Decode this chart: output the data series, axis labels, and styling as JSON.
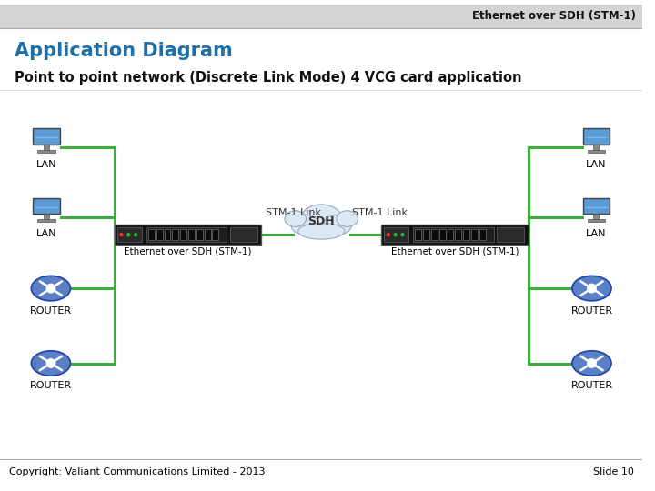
{
  "title_right": "Ethernet over SDH (STM-1)",
  "title_left": "Application Diagram",
  "subtitle": "Point to point network (Discrete Link Mode) 4 VCG card application",
  "copyright": "Copyright: Valiant Communications Limited - 2013",
  "slide": "Slide 10",
  "bg_color": "#ffffff",
  "title_color": "#1e6fa8",
  "line_color": "#3ab03a",
  "line_width": 2.2,
  "sdh_label": "SDH",
  "stm_link_label_left": "STM-1 Link",
  "stm_link_label_right": "STM-1 Link",
  "device_label_left": "Ethernet over SDH (STM-1)",
  "device_label_right": "Ethernet over SDH (STM-1)"
}
